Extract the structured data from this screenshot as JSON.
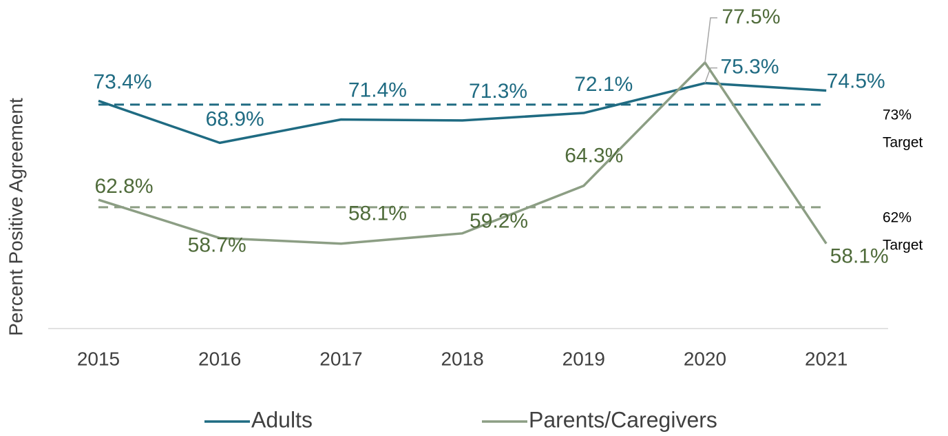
{
  "chart_data": {
    "type": "line",
    "y_axis_label": "Percent Positive Agreement",
    "categories": [
      "2015",
      "2016",
      "2017",
      "2018",
      "2019",
      "2020",
      "2021"
    ],
    "series": [
      {
        "name": "Adults",
        "color": "#1f6b82",
        "values": [
          73.4,
          68.9,
          71.4,
          71.3,
          72.1,
          75.3,
          74.5
        ],
        "value_labels": [
          "73.4%",
          "68.9%",
          "71.4%",
          "71.3%",
          "72.1%",
          "75.3%",
          "74.5%"
        ]
      },
      {
        "name": "Parents/Caregivers",
        "color": "#8c9e84",
        "values": [
          62.8,
          58.7,
          58.1,
          59.2,
          64.3,
          77.5,
          58.1
        ],
        "value_labels": [
          "62.8%",
          "58.7%",
          "58.1%",
          "59.2%",
          "64.3%",
          "77.5%",
          "58.1%"
        ]
      }
    ],
    "targets": [
      {
        "value": 73,
        "label": "73%",
        "text": "Target",
        "color": "#1f6b82"
      },
      {
        "value": 62,
        "label": "62%",
        "text": "Target",
        "color": "#8c9e84"
      }
    ],
    "ylim": [
      49,
      80
    ]
  }
}
